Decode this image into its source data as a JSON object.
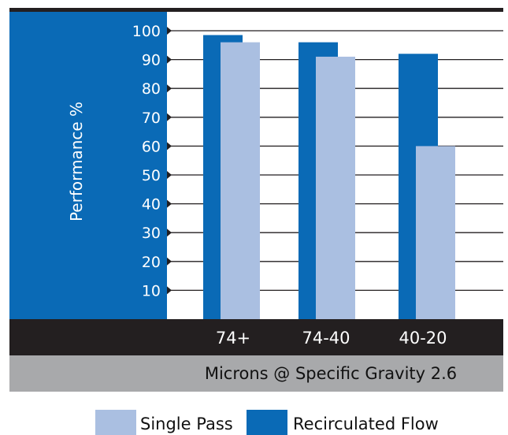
{
  "colors": {
    "single_pass": "#aabfe1",
    "recirculated_flow": "#0a6ab6",
    "axis_panel": "#0a6ab6",
    "category_band": "#231f20",
    "title_band": "#a8a9ab"
  },
  "chart_data": {
    "type": "bar",
    "title": "",
    "xlabel": "Microns @ Specific Gravity 2.6",
    "ylabel": "Performance %",
    "ylim": [
      0,
      100
    ],
    "yticks": [
      10,
      20,
      30,
      40,
      50,
      60,
      70,
      80,
      90,
      100
    ],
    "categories": [
      "74+",
      "74-40",
      "40-20"
    ],
    "series": [
      {
        "name": "Recirculated Flow",
        "values": [
          98.5,
          96,
          92
        ]
      },
      {
        "name": "Single Pass",
        "values": [
          96,
          91,
          60
        ]
      }
    ],
    "grid": true,
    "legend": "bottom"
  }
}
